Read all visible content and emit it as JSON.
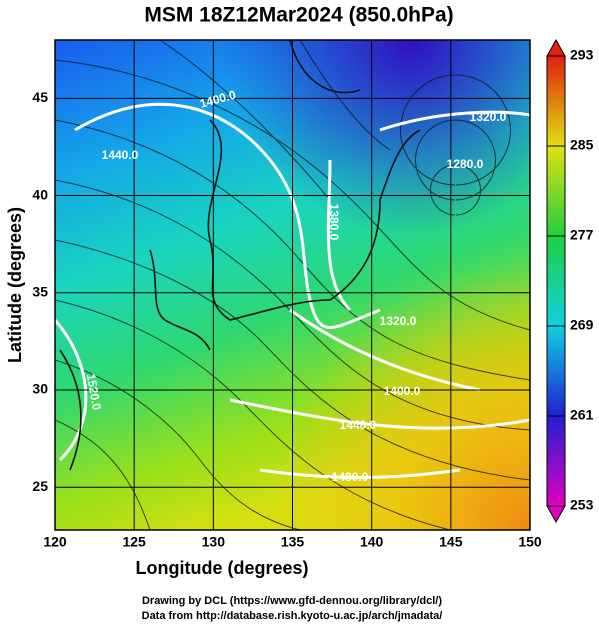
{
  "title": "MSM 18Z12Mar2024 (850.0hPa)",
  "x_axis": {
    "label": "Longitude (degrees)",
    "lim": [
      120,
      150
    ],
    "ticks": [
      120,
      125,
      130,
      135,
      140,
      145,
      150
    ]
  },
  "y_axis": {
    "label": "Latitude  (degrees)",
    "lim": [
      22.8,
      48
    ],
    "ticks": [
      25,
      30,
      35,
      40,
      45
    ]
  },
  "colorbar": {
    "lim": [
      253,
      293
    ],
    "ticks": [
      253,
      261,
      269,
      277,
      285,
      293
    ]
  },
  "contour_labels": [
    "1400.0",
    "1440.0",
    "1320.0",
    "1280.0",
    "1380.0",
    "1320.0",
    "1400.0",
    "1440.0",
    "1480.0",
    "1520.0"
  ],
  "credits": [
    "Drawing by DCL (https://www.gfd-dennou.org/library/dcl/)",
    "Data from http://database.rish.kyoto-u.ac.jp/arch/jmadata/"
  ]
}
